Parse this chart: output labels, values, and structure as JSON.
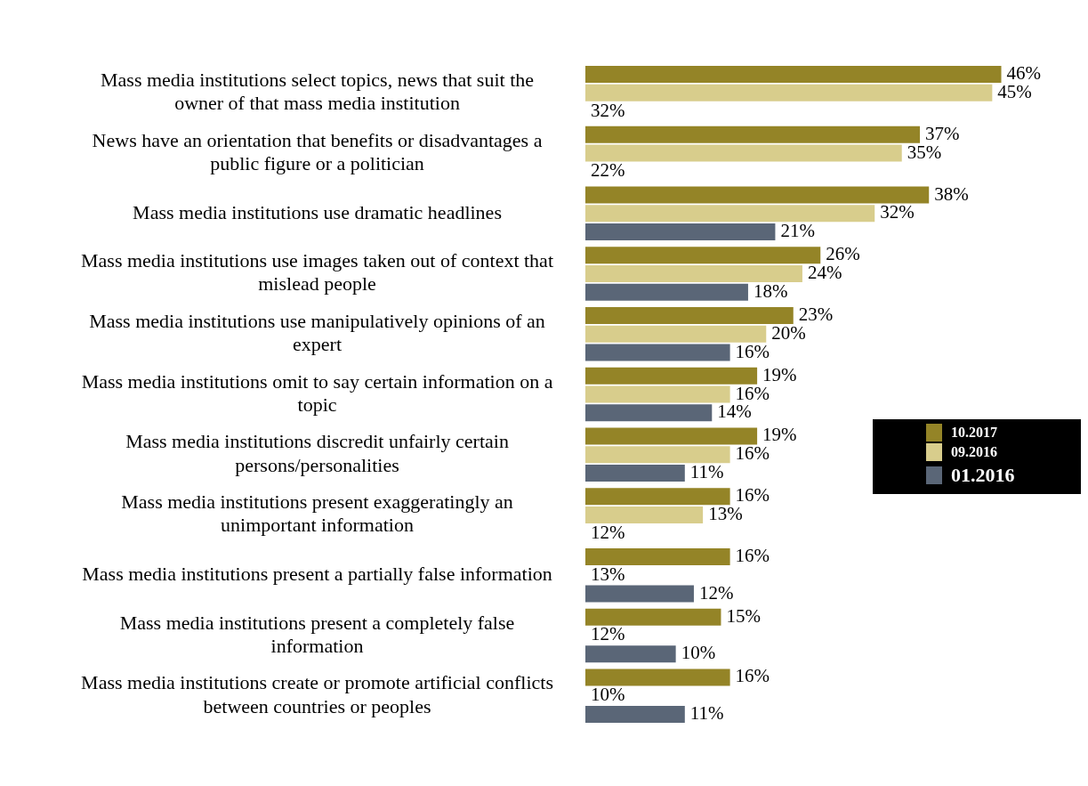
{
  "chart_data": {
    "type": "bar",
    "orientation": "horizontal",
    "legend": "right",
    "grid": false,
    "categories": [
      "Mass media institutions select topics, news that suit the owner of that mass media institution",
      "News have an orientation that benefits or disadvantages a public figure or a politician",
      "Mass media institutions use dramatic headlines",
      "Mass media institutions use images taken out of context that mislead people",
      "Mass media institutions use manipulatively opinions of an expert",
      "Mass media institutions omit to say certain information on a topic",
      "Mass media institutions discredit unfairly certain persons/personalities",
      "Mass media institutions present exaggeratingly an unimportant information",
      "Mass media institutions present a partially false information",
      "Mass media institutions present a completely false information",
      "Mass media institutions create or promote artificial conflicts between countries or peoples"
    ],
    "series": [
      {
        "name": "10.2017",
        "color": "#948427",
        "values": [
          46,
          37,
          38,
          26,
          23,
          19,
          19,
          16,
          16,
          15,
          16
        ],
        "value_labels": [
          "46%",
          "37%",
          "38%",
          "26%",
          "23%",
          "19%",
          "19%",
          "16%",
          "16%",
          "15%",
          "16%"
        ]
      },
      {
        "name": "09.2016",
        "color": "#d8cd8c",
        "values": [
          45,
          35,
          32,
          24,
          20,
          16,
          16,
          13,
          null,
          null,
          null
        ],
        "value_labels": [
          "45%",
          "35%",
          "32%",
          "24%",
          "20%",
          "16%",
          "16%",
          "13%",
          "13%",
          "12%",
          "10%"
        ]
      },
      {
        "name": "01.2016",
        "color": "#5a6677",
        "values": [
          null,
          null,
          21,
          18,
          16,
          14,
          11,
          null,
          12,
          10,
          11
        ],
        "value_labels": [
          "32%",
          "22%",
          "21%",
          "18%",
          "16%",
          "14%",
          "11%",
          "12%",
          "12%",
          "10%",
          "11%"
        ]
      }
    ]
  }
}
